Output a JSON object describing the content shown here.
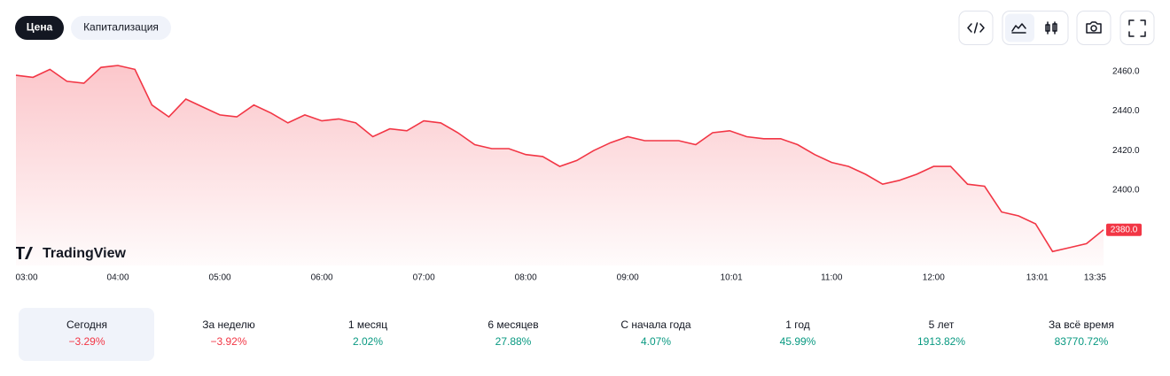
{
  "tabs": [
    "Цена",
    "Капитализация"
  ],
  "chart_data": {
    "type": "area",
    "color": "#f23645",
    "x": [
      "03:00",
      "03:10",
      "03:20",
      "03:30",
      "03:40",
      "03:50",
      "04:00",
      "04:10",
      "04:20",
      "04:30",
      "04:40",
      "04:50",
      "05:00",
      "05:10",
      "05:20",
      "05:30",
      "05:40",
      "05:50",
      "06:00",
      "06:10",
      "06:20",
      "06:30",
      "06:40",
      "06:50",
      "07:00",
      "07:10",
      "07:20",
      "07:30",
      "07:40",
      "07:50",
      "08:00",
      "08:10",
      "08:20",
      "08:30",
      "08:40",
      "08:50",
      "09:00",
      "09:10",
      "09:20",
      "09:30",
      "09:40",
      "09:50",
      "10:00",
      "10:10",
      "10:20",
      "10:30",
      "10:40",
      "10:50",
      "11:00",
      "11:10",
      "11:20",
      "11:30",
      "11:40",
      "11:50",
      "12:00",
      "12:10",
      "12:20",
      "12:30",
      "12:40",
      "12:50",
      "13:00",
      "13:10",
      "13:20",
      "13:30",
      "13:40"
    ],
    "values": [
      2458,
      2457,
      2461,
      2455,
      2454,
      2462,
      2463,
      2461,
      2443,
      2437,
      2446,
      2442,
      2438,
      2437,
      2443,
      2439,
      2434,
      2438,
      2435,
      2436,
      2434,
      2427,
      2431,
      2430,
      2435,
      2434,
      2429,
      2423,
      2421,
      2421,
      2418,
      2417,
      2412,
      2415,
      2420,
      2424,
      2427,
      2425,
      2425,
      2425,
      2423,
      2429,
      2430,
      2427,
      2426,
      2426,
      2423,
      2418,
      2414,
      2412,
      2408,
      2403,
      2405,
      2408,
      2412,
      2412,
      2403,
      2402,
      2389,
      2387,
      2383,
      2369,
      2371,
      2373,
      2380
    ],
    "xlim": [
      "03:00",
      "13:40"
    ],
    "xticks": [
      "03:00",
      "04:00",
      "05:00",
      "06:00",
      "07:00",
      "08:00",
      "09:00",
      "10:01",
      "11:00",
      "12:00",
      "13:01",
      "13:35"
    ],
    "ylim": [
      2362,
      2467
    ],
    "yticks": [
      {
        "value": 2460,
        "label": "2460.0"
      },
      {
        "value": 2440,
        "label": "2440.0"
      },
      {
        "value": 2420,
        "label": "2420.0"
      },
      {
        "value": 2400,
        "label": "2400.0"
      }
    ],
    "price_label": "2380.0",
    "watermark": "TradingView"
  },
  "performance": [
    {
      "label": "Сегодня",
      "value": "−3.29%",
      "color": "#f23645"
    },
    {
      "label": "За неделю",
      "value": "−3.92%",
      "color": "#f23645"
    },
    {
      "label": "1 месяц",
      "value": "2.02%",
      "color": "#089981"
    },
    {
      "label": "6 месяцев",
      "value": "27.88%",
      "color": "#089981"
    },
    {
      "label": "С начала года",
      "value": "4.07%",
      "color": "#089981"
    },
    {
      "label": "1 год",
      "value": "45.99%",
      "color": "#089981"
    },
    {
      "label": "5 лет",
      "value": "1913.82%",
      "color": "#089981"
    },
    {
      "label": "За всё время",
      "value": "83770.72%",
      "color": "#089981"
    }
  ]
}
